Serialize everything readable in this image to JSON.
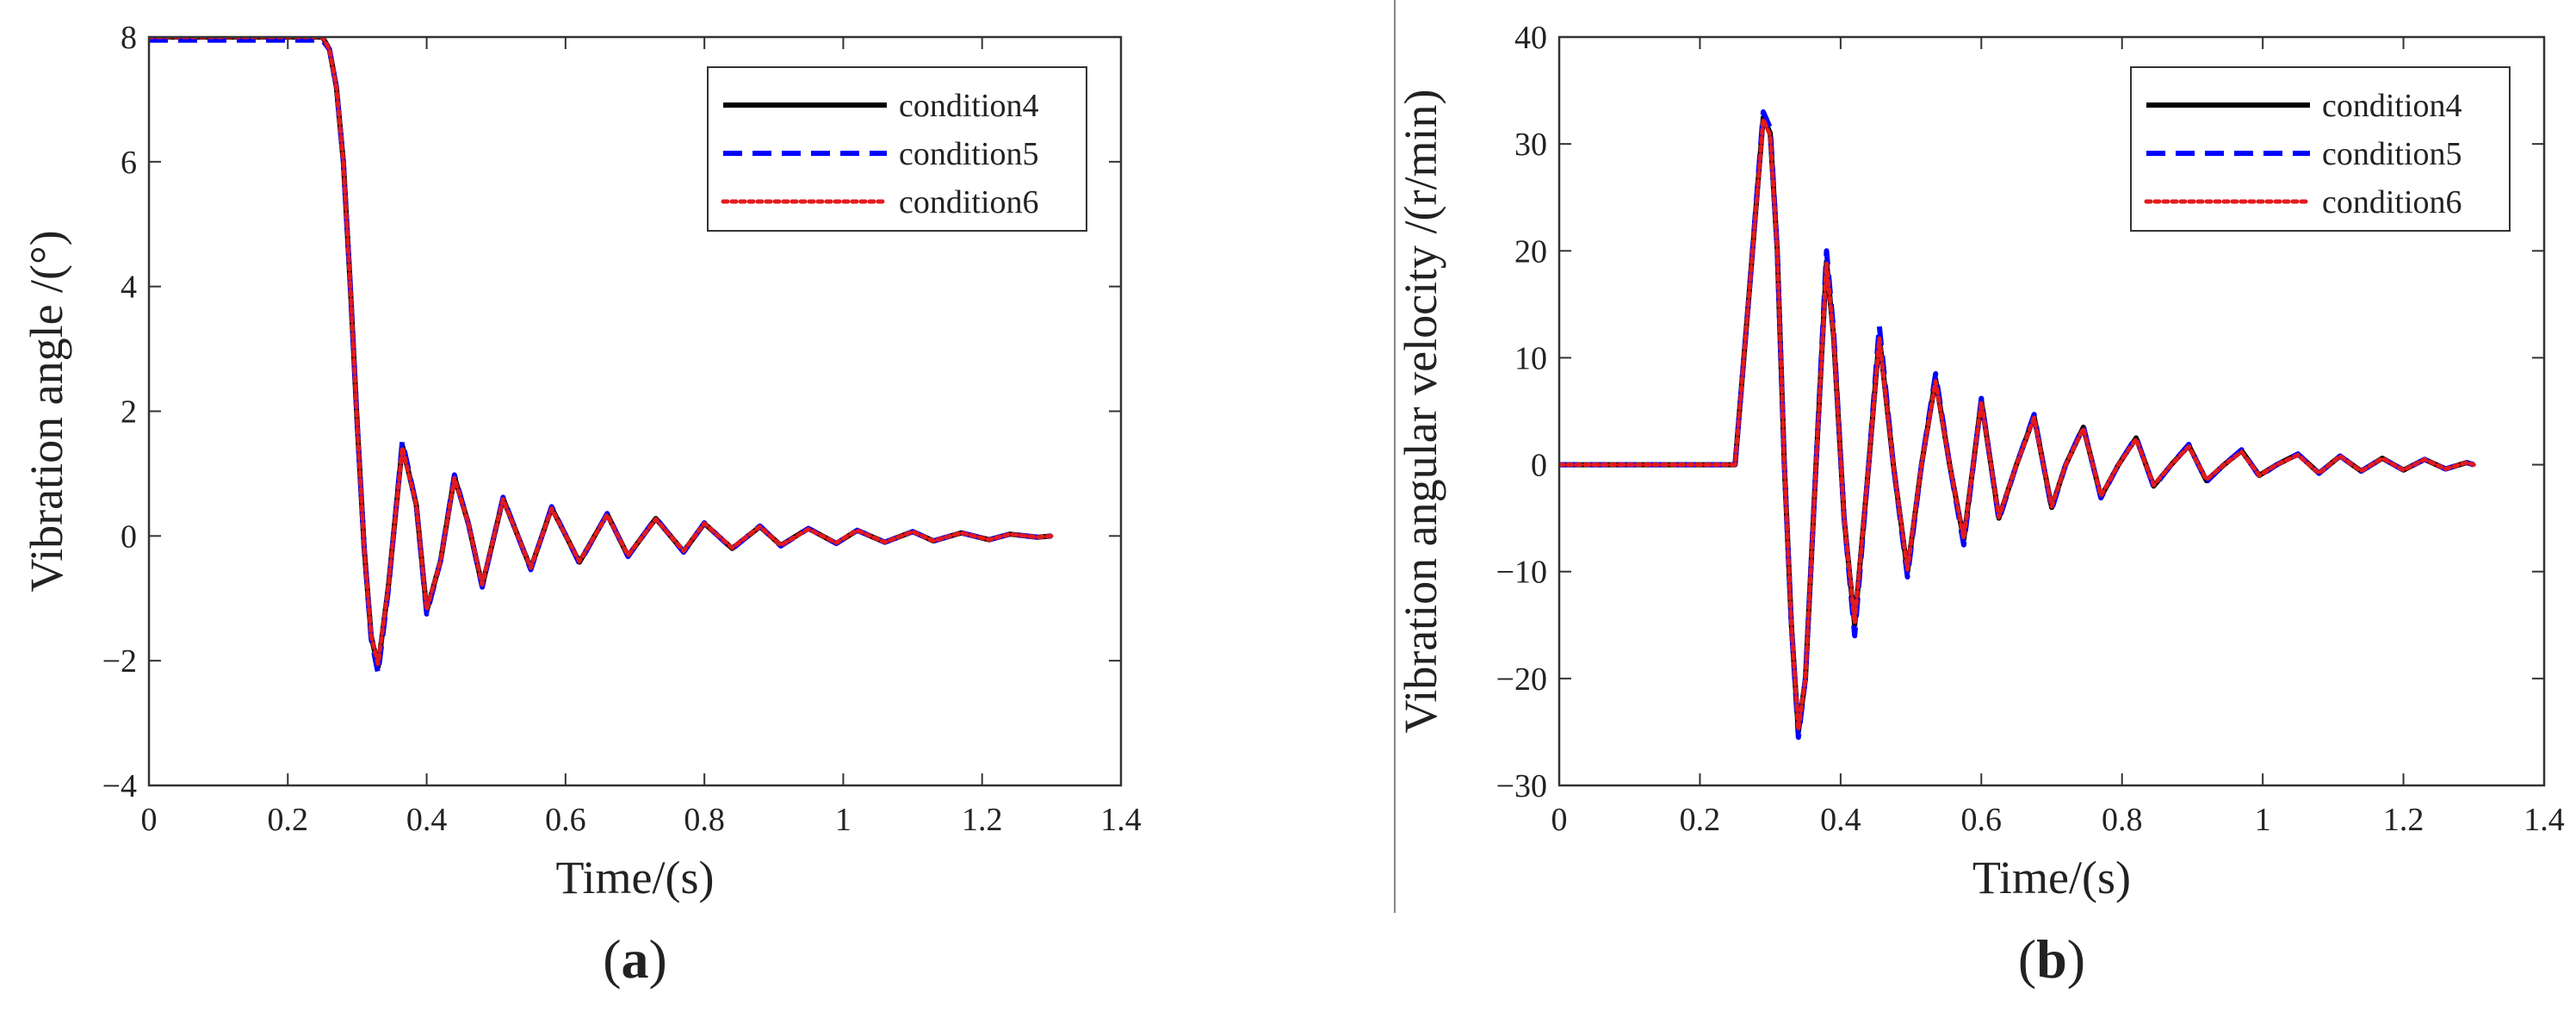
{
  "chart_data": [
    {
      "type": "line",
      "panel_label": "(a)",
      "panel_letter": "a",
      "xlabel": "Time/(s)",
      "ylabel": "Vibration angle /(°)",
      "xlim": [
        0,
        1.4
      ],
      "ylim": [
        -4,
        8
      ],
      "xticks": [
        0,
        0.2,
        0.4,
        0.6,
        0.8,
        1,
        1.2,
        1.4
      ],
      "xtick_labels": [
        "0",
        "0.2",
        "0.4",
        "0.6",
        "0.8",
        "1",
        "1.2",
        "1.4"
      ],
      "yticks": [
        -4,
        -2,
        0,
        2,
        4,
        6,
        8
      ],
      "ytick_labels": [
        "−4",
        "−2",
        "0",
        "2",
        "4",
        "6",
        "8"
      ],
      "legend": [
        "condition4",
        "condition5",
        "condition6"
      ],
      "legend_position": "top-right",
      "series": [
        {
          "name": "condition4",
          "color": "#000000",
          "style": "solid",
          "x": [
            0,
            0.1,
            0.2,
            0.25,
            0.26,
            0.27,
            0.28,
            0.29,
            0.3,
            0.31,
            0.32,
            0.33,
            0.345,
            0.365,
            0.385,
            0.4,
            0.42,
            0.44,
            0.46,
            0.48,
            0.51,
            0.55,
            0.58,
            0.62,
            0.66,
            0.69,
            0.73,
            0.77,
            0.8,
            0.84,
            0.88,
            0.91,
            0.95,
            0.99,
            1.02,
            1.06,
            1.1,
            1.13,
            1.17,
            1.21,
            1.24,
            1.28,
            1.3
          ],
          "y": [
            8,
            8,
            8,
            8,
            7.8,
            7.2,
            6.0,
            4.0,
            1.8,
            -0.2,
            -1.6,
            -2.1,
            -0.8,
            1.45,
            0.5,
            -1.2,
            -0.4,
            0.95,
            0.2,
            -0.8,
            0.6,
            -0.52,
            0.45,
            -0.42,
            0.35,
            -0.32,
            0.28,
            -0.25,
            0.2,
            -0.2,
            0.15,
            -0.15,
            0.12,
            -0.12,
            0.09,
            -0.1,
            0.07,
            -0.08,
            0.05,
            -0.06,
            0.03,
            -0.02,
            0
          ]
        },
        {
          "name": "condition5",
          "color": "#0000ff",
          "style": "dashed",
          "x": [
            0,
            0.1,
            0.2,
            0.25,
            0.26,
            0.27,
            0.28,
            0.29,
            0.3,
            0.31,
            0.32,
            0.33,
            0.345,
            0.365,
            0.385,
            0.4,
            0.42,
            0.44,
            0.46,
            0.48,
            0.51,
            0.55,
            0.58,
            0.62,
            0.66,
            0.69,
            0.73,
            0.77,
            0.8,
            0.84,
            0.88,
            0.91,
            0.95,
            0.99,
            1.02,
            1.06,
            1.1,
            1.13,
            1.17,
            1.21,
            1.24,
            1.28,
            1.3
          ],
          "y": [
            7.95,
            7.95,
            7.95,
            7.95,
            7.8,
            7.2,
            6.0,
            4.0,
            1.8,
            -0.2,
            -1.65,
            -2.2,
            -0.85,
            1.52,
            0.5,
            -1.25,
            -0.4,
            0.98,
            0.2,
            -0.82,
            0.62,
            -0.54,
            0.47,
            -0.44,
            0.36,
            -0.33,
            0.29,
            -0.26,
            0.21,
            -0.21,
            0.16,
            -0.16,
            0.12,
            -0.12,
            0.09,
            -0.1,
            0.07,
            -0.08,
            0.05,
            -0.06,
            0.03,
            -0.02,
            0
          ]
        },
        {
          "name": "condition6",
          "color": "#e41a1c",
          "style": "dotted",
          "x": [
            0,
            0.1,
            0.2,
            0.25,
            0.26,
            0.27,
            0.28,
            0.29,
            0.3,
            0.31,
            0.32,
            0.33,
            0.345,
            0.365,
            0.385,
            0.4,
            0.42,
            0.44,
            0.46,
            0.48,
            0.51,
            0.55,
            0.58,
            0.62,
            0.66,
            0.69,
            0.73,
            0.77,
            0.8,
            0.84,
            0.88,
            0.91,
            0.95,
            0.99,
            1.02,
            1.06,
            1.1,
            1.13,
            1.17,
            1.21,
            1.24,
            1.28,
            1.3
          ],
          "y": [
            8,
            8,
            8,
            8,
            7.8,
            7.2,
            6.0,
            4.0,
            1.8,
            -0.2,
            -1.6,
            -2.05,
            -0.8,
            1.42,
            0.5,
            -1.18,
            -0.4,
            0.93,
            0.2,
            -0.78,
            0.59,
            -0.51,
            0.44,
            -0.41,
            0.34,
            -0.31,
            0.27,
            -0.24,
            0.2,
            -0.19,
            0.15,
            -0.15,
            0.11,
            -0.11,
            0.09,
            -0.1,
            0.07,
            -0.08,
            0.05,
            -0.06,
            0.03,
            -0.02,
            0
          ]
        }
      ]
    },
    {
      "type": "line",
      "panel_label": "(b)",
      "panel_letter": "b",
      "xlabel": "Time/(s)",
      "ylabel": "Vibration angular velocity /(r/min)",
      "xlim": [
        0,
        1.4
      ],
      "ylim": [
        -30,
        40
      ],
      "xticks": [
        0,
        0.2,
        0.4,
        0.6,
        0.8,
        1,
        1.2,
        1.4
      ],
      "xtick_labels": [
        "0",
        "0.2",
        "0.4",
        "0.6",
        "0.8",
        "1",
        "1.2",
        "1.4"
      ],
      "yticks": [
        -30,
        -20,
        -10,
        0,
        10,
        20,
        30,
        40
      ],
      "ytick_labels": [
        "−30",
        "−20",
        "−10",
        "0",
        "10",
        "20",
        "30",
        "40"
      ],
      "legend": [
        "condition4",
        "condition5",
        "condition6"
      ],
      "legend_position": "top-right",
      "series": [
        {
          "name": "condition4",
          "color": "#000000",
          "style": "solid",
          "x": [
            0,
            0.1,
            0.2,
            0.25,
            0.27,
            0.29,
            0.3,
            0.31,
            0.32,
            0.33,
            0.34,
            0.35,
            0.365,
            0.38,
            0.39,
            0.405,
            0.42,
            0.44,
            0.455,
            0.475,
            0.495,
            0.515,
            0.535,
            0.555,
            0.575,
            0.6,
            0.625,
            0.65,
            0.675,
            0.7,
            0.72,
            0.745,
            0.77,
            0.795,
            0.82,
            0.845,
            0.87,
            0.895,
            0.92,
            0.945,
            0.97,
            0.995,
            1.02,
            1.05,
            1.08,
            1.11,
            1.14,
            1.17,
            1.2,
            1.23,
            1.26,
            1.29,
            1.3
          ],
          "y": [
            0,
            0,
            0,
            0,
            16,
            32.5,
            31,
            20,
            0,
            -15,
            -25,
            -20,
            0,
            19,
            12,
            -5,
            -15,
            0,
            12,
            0,
            -10,
            0,
            8,
            0,
            -7,
            6,
            -5,
            0,
            4.5,
            -4,
            0,
            3.5,
            -3,
            0,
            2.5,
            -2,
            0,
            1.8,
            -1.5,
            0,
            1.3,
            -1,
            0,
            1,
            -0.8,
            0.8,
            -0.6,
            0.6,
            -0.5,
            0.5,
            -0.4,
            0.2,
            0
          ]
        },
        {
          "name": "condition5",
          "color": "#0000ff",
          "style": "dashed",
          "x": [
            0,
            0.1,
            0.2,
            0.25,
            0.27,
            0.29,
            0.3,
            0.31,
            0.32,
            0.33,
            0.34,
            0.35,
            0.365,
            0.38,
            0.39,
            0.405,
            0.42,
            0.44,
            0.455,
            0.475,
            0.495,
            0.515,
            0.535,
            0.555,
            0.575,
            0.6,
            0.625,
            0.65,
            0.675,
            0.7,
            0.72,
            0.745,
            0.77,
            0.795,
            0.82,
            0.845,
            0.87,
            0.895,
            0.92,
            0.945,
            0.97,
            0.995,
            1.02,
            1.05,
            1.08,
            1.11,
            1.14,
            1.17,
            1.2,
            1.23,
            1.26,
            1.29,
            1.3
          ],
          "y": [
            0,
            0,
            0,
            0,
            16,
            33,
            31.5,
            20,
            0,
            -15,
            -25.5,
            -20,
            0,
            20,
            12.5,
            -5,
            -16,
            0,
            13,
            0,
            -10.5,
            0,
            8.5,
            0,
            -7.5,
            6.2,
            -5.2,
            0,
            4.7,
            -4.2,
            0,
            3.6,
            -3.1,
            0,
            2.6,
            -2.1,
            0,
            1.9,
            -1.6,
            0,
            1.4,
            -1.1,
            0,
            1,
            -0.8,
            0.8,
            -0.6,
            0.6,
            -0.5,
            0.5,
            -0.4,
            0.2,
            0
          ]
        },
        {
          "name": "condition6",
          "color": "#e41a1c",
          "style": "dotted",
          "x": [
            0,
            0.1,
            0.2,
            0.25,
            0.27,
            0.29,
            0.3,
            0.31,
            0.32,
            0.33,
            0.34,
            0.35,
            0.365,
            0.38,
            0.39,
            0.405,
            0.42,
            0.44,
            0.455,
            0.475,
            0.495,
            0.515,
            0.535,
            0.555,
            0.575,
            0.6,
            0.625,
            0.65,
            0.675,
            0.7,
            0.72,
            0.745,
            0.77,
            0.795,
            0.82,
            0.845,
            0.87,
            0.895,
            0.92,
            0.945,
            0.97,
            0.995,
            1.02,
            1.05,
            1.08,
            1.11,
            1.14,
            1.17,
            1.2,
            1.23,
            1.26,
            1.29,
            1.3
          ],
          "y": [
            0,
            0,
            0,
            0,
            16,
            32.3,
            30.8,
            20,
            0,
            -15,
            -24.8,
            -20,
            0,
            18.8,
            12,
            -5,
            -14.8,
            0,
            11.8,
            0,
            -9.8,
            0,
            7.8,
            0,
            -6.9,
            5.9,
            -4.9,
            0,
            4.4,
            -3.9,
            0,
            3.4,
            -2.9,
            0,
            2.4,
            -1.9,
            0,
            1.7,
            -1.4,
            0,
            1.2,
            -1,
            0,
            0.9,
            -0.8,
            0.8,
            -0.6,
            0.6,
            -0.5,
            0.5,
            -0.4,
            0.2,
            0
          ]
        }
      ]
    }
  ]
}
